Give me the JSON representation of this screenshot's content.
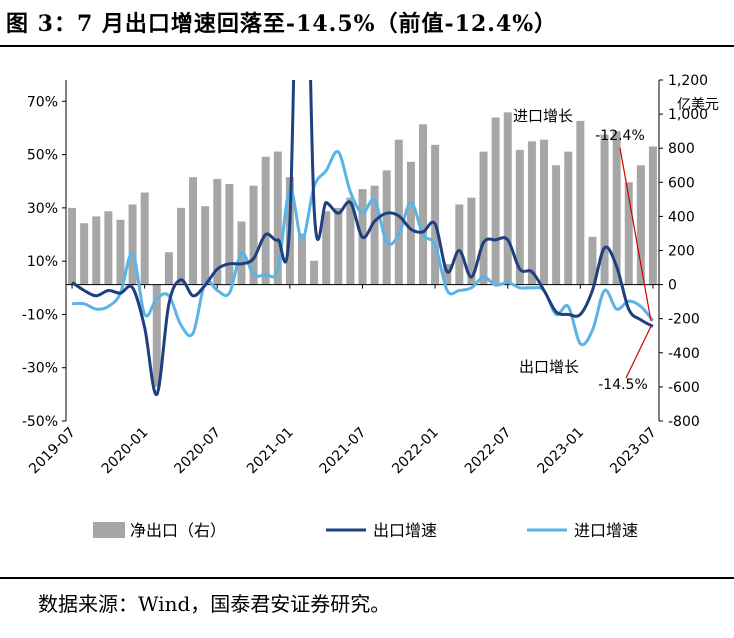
{
  "title": "图 3：7 月出口增速回落至-14.5%（前值-12.4%）",
  "source": "数据来源：Wind，国泰君安证券研究。",
  "chart_data": {
    "type": "bar+line",
    "left_axis": {
      "ticks": [
        "70%",
        "50%",
        "30%",
        "10%",
        "-10%",
        "-30%",
        "-50%"
      ],
      "values": [
        70,
        50,
        30,
        10,
        -10,
        -30,
        -50
      ],
      "ylim": [
        -50,
        78
      ]
    },
    "right_axis": {
      "unit": "亿美元",
      "ticks": [
        "1,200",
        "1,000",
        "800",
        "600",
        "400",
        "200",
        "0",
        "-200",
        "-400",
        "-600",
        "-800"
      ],
      "values": [
        1200,
        1000,
        800,
        600,
        400,
        200,
        0,
        -200,
        -400,
        -600,
        -800
      ],
      "ylim": [
        -800,
        1200
      ]
    },
    "x_ticks": [
      "2019-07",
      "2020-01",
      "2020-07",
      "2021-01",
      "2021-07",
      "2022-01",
      "2022-07",
      "2023-01",
      "2023-07"
    ],
    "months": [
      "2019-07",
      "2019-08",
      "2019-09",
      "2019-10",
      "2019-11",
      "2019-12",
      "2020-01",
      "2020-02",
      "2020-03",
      "2020-04",
      "2020-05",
      "2020-06",
      "2020-07",
      "2020-08",
      "2020-09",
      "2020-10",
      "2020-11",
      "2020-12",
      "2021-01",
      "2021-02",
      "2021-03",
      "2021-04",
      "2021-05",
      "2021-06",
      "2021-07",
      "2021-08",
      "2021-09",
      "2021-10",
      "2021-11",
      "2021-12",
      "2022-01",
      "2022-02",
      "2022-03",
      "2022-04",
      "2022-05",
      "2022-06",
      "2022-07",
      "2022-08",
      "2022-09",
      "2022-10",
      "2022-11",
      "2022-12",
      "2023-01",
      "2023-02",
      "2023-03",
      "2023-04",
      "2023-05",
      "2023-06",
      "2023-07"
    ],
    "legend": [
      "净出口（右）",
      "出口增速",
      "进口增速"
    ],
    "series": [
      {
        "name": "净出口（右）",
        "type": "bar",
        "axis": "right",
        "color": "#a6a6a6",
        "values": [
          450,
          360,
          400,
          430,
          380,
          470,
          540,
          -600,
          190,
          450,
          630,
          460,
          620,
          590,
          370,
          580,
          750,
          780,
          630,
          300,
          140,
          430,
          450,
          510,
          560,
          580,
          670,
          850,
          720,
          940,
          820,
          120,
          470,
          510,
          780,
          980,
          1010,
          790,
          840,
          850,
          700,
          780,
          960,
          280,
          880,
          900,
          600,
          700,
          810
        ]
      },
      {
        "name": "出口增速",
        "type": "line",
        "axis": "left",
        "color": "#1f3f7f",
        "values": [
          2,
          -1,
          -3,
          -1,
          -2,
          0,
          -15,
          -40,
          -6,
          3,
          -3,
          1,
          7,
          9,
          9,
          11,
          20,
          18,
          25,
          200,
          30,
          32,
          28,
          32,
          19,
          25,
          28,
          27,
          22,
          21,
          24,
          6,
          14,
          4,
          17,
          18,
          18,
          7,
          6,
          -1,
          -9,
          -10,
          -10,
          -1,
          15,
          8,
          -8,
          -12,
          -14.5
        ]
      },
      {
        "name": "进口增速",
        "type": "line",
        "axis": "left",
        "color": "#5ab4e6",
        "values": [
          -6,
          -6,
          -8,
          -7,
          -2,
          13,
          -10,
          -4,
          -3,
          -14,
          -17,
          2,
          -1,
          -2,
          13,
          5,
          5,
          7,
          37,
          18,
          38,
          44,
          51,
          36,
          28,
          33,
          17,
          20,
          32,
          20,
          16,
          -1,
          -1,
          0,
          4,
          1,
          2,
          0,
          0,
          -1,
          -10,
          -7,
          -21,
          -16,
          -1,
          -8,
          -5,
          -7,
          -12.4
        ]
      }
    ],
    "annotations": [
      "进口增长",
      "-12.4%",
      "出口增长",
      "-14.5%"
    ]
  }
}
